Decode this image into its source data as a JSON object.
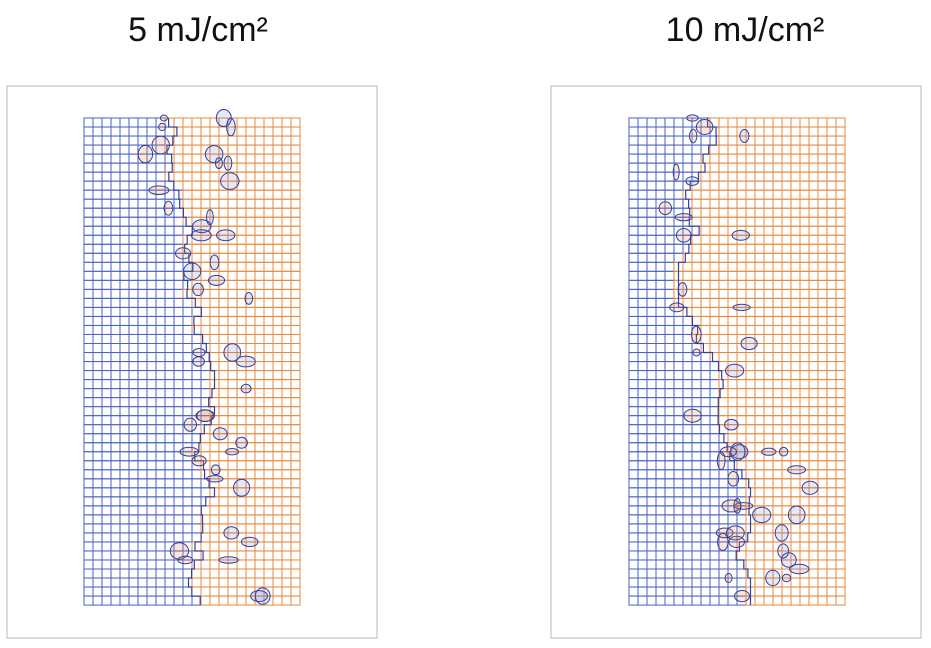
{
  "panels": [
    {
      "title": "5 mJ/cm²"
    },
    {
      "title": "10 mJ/cm²"
    }
  ]
}
